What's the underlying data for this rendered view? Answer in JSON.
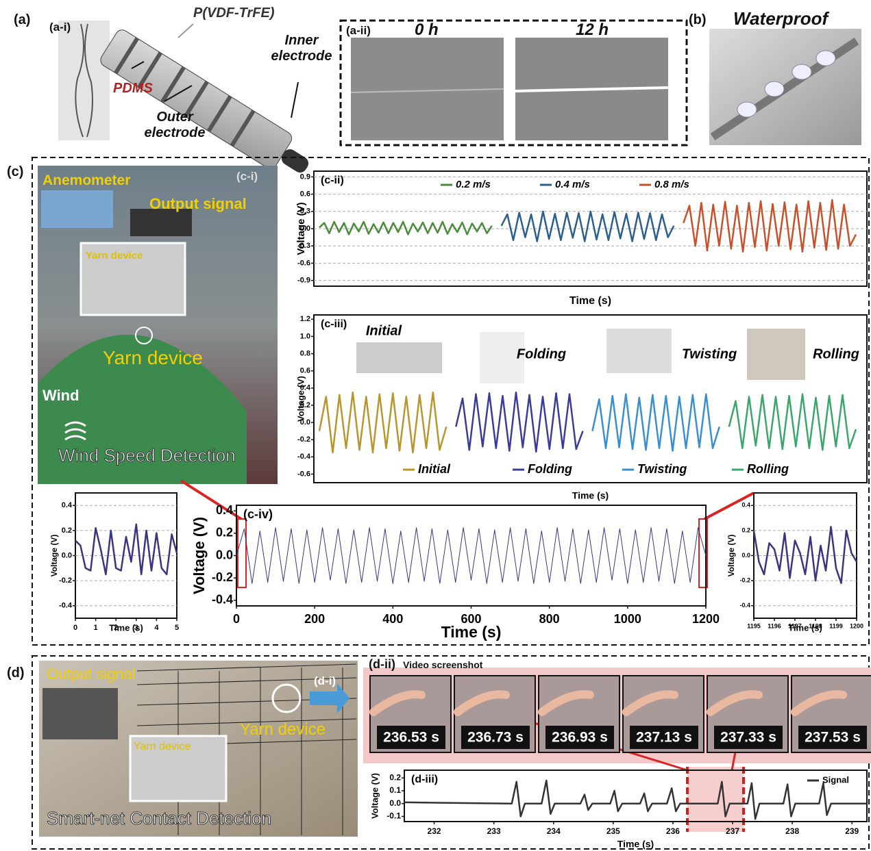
{
  "figure": {
    "panel_a": {
      "label": "(a)",
      "sub_i": "(a-i)",
      "material_1": "P(VDF-TrFE)",
      "material_2": "PDMS",
      "outer": "Outer electrode",
      "inner": "Inner electrode",
      "sub_ii": "(a-ii)",
      "time_0": "0 h",
      "time_12": "12 h"
    },
    "panel_b": {
      "label": "(b)",
      "title": "Waterproof"
    },
    "panel_c": {
      "label": "(c)",
      "sub_i": "(c-i)",
      "anemometer": "Anemometer",
      "output": "Output signal",
      "yarn_small": "Yarn device",
      "yarn_big": "Yarn device",
      "wind": "Wind",
      "caption": "Wind Speed Detection"
    },
    "panel_d": {
      "label": "(d)",
      "output": "Output signal",
      "yarn_small": "Yarn device",
      "yarn_big": "Yarn device",
      "caption": "Smart-net Contact Detection",
      "sub_i": "(d-i)",
      "sub_ii": "(d-ii)",
      "video": "Video screenshot",
      "frames": [
        "236.53 s",
        "236.73 s",
        "236.93 s",
        "237.13 s",
        "237.33 s",
        "237.53 s"
      ]
    }
  },
  "chart_data": [
    {
      "type": "line",
      "panel_label": "(c-ii)",
      "xlabel": "Time (s)",
      "ylabel": "Voltage (V)",
      "grid": true,
      "legend": "top",
      "ylim": [
        -1.0,
        1.0
      ],
      "yticks": [
        -0.9,
        -0.6,
        -0.3,
        {
          "value": 0,
          "label": "0.0"
        },
        0.3,
        0.6,
        0.9
      ],
      "series": [
        {
          "name": "0.2 m/s",
          "color": "#4a8c3a",
          "values": [
            0.02,
            0.1,
            -0.08,
            0.12,
            -0.06,
            0.1,
            -0.1,
            0.09,
            -0.05,
            0.12,
            -0.09,
            0.08,
            -0.07,
            0.11,
            -0.08,
            0.1,
            -0.06,
            0.12,
            -0.1,
            0.09,
            -0.05,
            0.11,
            -0.08,
            0.1,
            -0.07,
            0.12,
            -0.09,
            0.08,
            -0.06,
            0.11,
            -0.1,
            0.09,
            -0.05,
            0.1,
            -0.08,
            0.05
          ]
        },
        {
          "name": "0.4 m/s",
          "color": "#2c5f8f",
          "values": [
            0.05,
            0.25,
            -0.2,
            0.28,
            -0.15,
            0.25,
            -0.22,
            0.3,
            -0.18,
            0.26,
            -0.2,
            0.28,
            -0.16,
            0.27,
            -0.22,
            0.3,
            -0.19,
            0.25,
            -0.2,
            0.29,
            -0.17,
            0.26,
            -0.22,
            0.28,
            -0.18,
            0.27,
            -0.2,
            0.25,
            -0.15,
            0.05
          ]
        },
        {
          "name": "0.8 m/s",
          "color": "#c8502a",
          "values": [
            0.1,
            0.4,
            -0.3,
            0.45,
            -0.38,
            0.42,
            -0.3,
            0.47,
            -0.35,
            0.4,
            -0.4,
            0.45,
            -0.32,
            0.48,
            -0.38,
            0.43,
            -0.3,
            0.46,
            -0.36,
            0.42,
            -0.4,
            0.48,
            -0.33,
            0.45,
            -0.37,
            0.5,
            -0.35,
            0.42,
            -0.3,
            -0.1
          ]
        }
      ]
    },
    {
      "type": "line",
      "panel_label": "(c-iii)",
      "xlabel": "Time (s)",
      "ylabel": "Voltage (V)",
      "grid": false,
      "legend": "bottom",
      "annotations": [
        "Initial",
        "Folding",
        "Twisting",
        "Rolling"
      ],
      "ylim": [
        -0.7,
        1.25
      ],
      "yticks": [
        -0.6,
        -0.4,
        -0.2,
        {
          "value": 0,
          "label": "0.0"
        },
        0.2,
        0.4,
        0.6,
        0.8,
        {
          "value": 1,
          "label": "1.0"
        },
        1.2
      ],
      "series": [
        {
          "name": "Initial",
          "color": "#b8962e",
          "values": [
            -0.1,
            0.3,
            -0.35,
            0.32,
            -0.3,
            0.35,
            -0.32,
            0.3,
            -0.35,
            0.33,
            -0.3,
            0.34,
            -0.33,
            0.3,
            -0.35,
            0.32,
            -0.3,
            0.35,
            -0.32,
            -0.05
          ]
        },
        {
          "name": "Folding",
          "color": "#3b3b9a",
          "values": [
            -0.05,
            0.28,
            -0.32,
            0.33,
            -0.28,
            0.34,
            -0.3,
            0.31,
            -0.33,
            0.35,
            -0.29,
            0.32,
            -0.34,
            0.3,
            -0.31,
            0.34,
            -0.3,
            0.33,
            -0.31,
            -0.1
          ]
        },
        {
          "name": "Twisting",
          "color": "#3a8fd0",
          "values": [
            -0.1,
            0.27,
            -0.3,
            0.31,
            -0.29,
            0.33,
            -0.31,
            0.29,
            -0.32,
            0.32,
            -0.3,
            0.31,
            -0.33,
            0.3,
            -0.3,
            0.32,
            -0.29,
            0.33,
            -0.3,
            -0.05
          ]
        },
        {
          "name": "Rolling",
          "color": "#3aa66a",
          "values": [
            -0.05,
            0.25,
            -0.3,
            0.3,
            -0.27,
            0.32,
            -0.3,
            0.3,
            -0.31,
            0.31,
            -0.28,
            0.33,
            -0.3,
            0.29,
            -0.32,
            0.31,
            -0.28,
            0.32,
            -0.3,
            -0.08
          ]
        }
      ]
    },
    {
      "type": "line",
      "panel_label": "(c-iv)",
      "xlabel": "Time (s)",
      "ylabel": "Voltage (V)",
      "grid": false,
      "xlim": [
        0,
        1200
      ],
      "xticks": [
        0,
        200,
        400,
        600,
        800,
        1000,
        1200
      ],
      "ylim": [
        -0.45,
        0.45
      ],
      "yticks": [
        -0.4,
        -0.2,
        {
          "value": 0,
          "label": "0.0"
        },
        0.2,
        0.4
      ],
      "x": [
        0,
        20,
        40,
        60,
        80,
        100,
        120,
        140,
        160,
        180,
        200,
        220,
        240,
        260,
        280,
        300,
        320,
        340,
        360,
        380,
        400,
        420,
        440,
        460,
        480,
        500,
        520,
        540,
        560,
        580,
        600,
        620,
        640,
        660,
        680,
        700,
        720,
        740,
        760,
        780,
        800,
        820,
        840,
        860,
        880,
        900,
        920,
        940,
        960,
        980,
        1000,
        1020,
        1040,
        1060,
        1080,
        1100,
        1120,
        1140,
        1160,
        1180,
        1200
      ],
      "series": [
        {
          "color": "#3a3580",
          "values": [
            0,
            0.24,
            -0.25,
            0.22,
            -0.24,
            0.25,
            -0.23,
            0.24,
            -0.25,
            0.23,
            -0.24,
            0.25,
            -0.22,
            0.24,
            -0.25,
            0.23,
            -0.24,
            0.25,
            -0.23,
            0.24,
            -0.25,
            0.22,
            -0.24,
            0.25,
            -0.23,
            0.24,
            -0.25,
            0.23,
            -0.24,
            0.25,
            -0.22,
            0.24,
            -0.25,
            0.23,
            -0.24,
            0.25,
            -0.23,
            0.24,
            -0.25,
            0.22,
            -0.24,
            0.25,
            -0.23,
            0.24,
            -0.25,
            0.23,
            -0.24,
            0.25,
            -0.22,
            0.24,
            -0.25,
            0.23,
            -0.24,
            0.25,
            -0.23,
            0.24,
            -0.25,
            0.22,
            -0.24,
            0.25,
            0
          ]
        }
      ]
    },
    {
      "type": "line",
      "xlabel": "Time (s)",
      "ylabel": "Voltage (V)",
      "grid": true,
      "xlim": [
        0,
        5
      ],
      "xticks": [
        0,
        1,
        2,
        3,
        4,
        5
      ],
      "ylim": [
        -0.5,
        0.5
      ],
      "yticks": [
        -0.4,
        -0.2,
        {
          "value": 0,
          "label": "0.0"
        },
        0.2,
        0.4
      ],
      "x": [
        0,
        0.25,
        0.5,
        0.75,
        1,
        1.25,
        1.5,
        1.75,
        2,
        2.25,
        2.5,
        2.75,
        3,
        3.25,
        3.5,
        3.75,
        4,
        4.25,
        4.5,
        4.75,
        5
      ],
      "series": [
        {
          "color": "#3a3580",
          "values": [
            0.12,
            0.08,
            -0.1,
            -0.12,
            0.22,
            0.05,
            -0.15,
            0.2,
            -0.1,
            -0.12,
            0.15,
            -0.05,
            0.25,
            -0.15,
            0.2,
            -0.12,
            0.18,
            -0.1,
            -0.15,
            0.17,
            0.02
          ]
        }
      ]
    },
    {
      "type": "line",
      "xlabel": "Time (s)",
      "ylabel": "Voltage (V)",
      "grid": true,
      "xlim": [
        1195,
        1200
      ],
      "xticks": [
        1195,
        1196,
        1197,
        1198,
        1199,
        1200
      ],
      "ylim": [
        -0.5,
        0.5
      ],
      "yticks": [
        -0.4,
        -0.2,
        {
          "value": 0,
          "label": "0.0"
        },
        0.2,
        0.4
      ],
      "x": [
        1195,
        1195.25,
        1195.5,
        1195.75,
        1196,
        1196.25,
        1196.5,
        1196.75,
        1197,
        1197.25,
        1197.5,
        1197.75,
        1198,
        1198.25,
        1198.5,
        1198.75,
        1199,
        1199.25,
        1199.5,
        1199.75,
        1200
      ],
      "series": [
        {
          "color": "#3a3580",
          "values": [
            0.2,
            -0.05,
            -0.15,
            0.1,
            0.05,
            -0.12,
            0.18,
            -0.18,
            0.12,
            0.02,
            -0.15,
            0.15,
            -0.2,
            0.08,
            -0.12,
            0.23,
            -0.1,
            -0.22,
            0.2,
            0.02,
            -0.05
          ]
        }
      ]
    },
    {
      "type": "line",
      "panel_label": "(d-iii)",
      "xlabel": "Time (s)",
      "ylabel": "Voltage (V)",
      "grid": false,
      "legend": "upper right",
      "xlim": [
        231.5,
        239.25
      ],
      "xticks": [
        232,
        233,
        234,
        235,
        236,
        237,
        238,
        239
      ],
      "ylim": [
        -0.14,
        0.26
      ],
      "yticks": [
        -0.1,
        {
          "value": 0,
          "label": "0.0"
        },
        0.1,
        0.2
      ],
      "x": [
        231.5,
        233.3,
        233.38,
        233.45,
        233.52,
        233.8,
        233.88,
        233.95,
        234.02,
        234.45,
        234.52,
        234.58,
        234.65,
        234.95,
        235.02,
        235.08,
        235.15,
        235.45,
        235.52,
        235.58,
        235.65,
        235.9,
        235.98,
        236.05,
        236.12,
        236.75,
        236.82,
        236.88,
        236.95,
        237.25,
        237.32,
        237.38,
        237.45,
        237.85,
        237.92,
        237.98,
        238.05,
        238.45,
        238.52,
        238.58,
        238.65,
        239.25
      ],
      "series": [
        {
          "name": "Signal",
          "color": "#333333",
          "values": [
            0.01,
            0,
            0.17,
            -0.1,
            0,
            0,
            0.18,
            -0.08,
            0,
            0,
            0.07,
            -0.05,
            0,
            0,
            0.1,
            -0.06,
            0,
            0,
            0.08,
            -0.06,
            0,
            0,
            0.12,
            -0.06,
            0,
            0,
            0.17,
            -0.1,
            0,
            0,
            0.16,
            -0.12,
            0,
            0,
            0.15,
            -0.1,
            0,
            0,
            0.16,
            -0.09,
            0,
            0
          ]
        }
      ]
    }
  ]
}
